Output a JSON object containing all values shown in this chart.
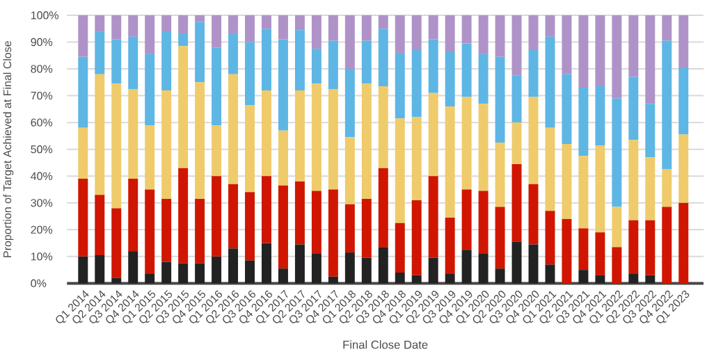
{
  "chart_data": {
    "type": "bar",
    "stacked": true,
    "grid": "y",
    "xlabel": "Final Close Date",
    "ylabel": "Proportion of Target Achieved at Final Close",
    "categories": [
      "Q1 2014",
      "Q2 2014",
      "Q3 2014",
      "Q4 2014",
      "Q1 2015",
      "Q2 2015",
      "Q3 2015",
      "Q4 2015",
      "Q1 2016",
      "Q2 2016",
      "Q3 2016",
      "Q4 2016",
      "Q1 2017",
      "Q2 2017",
      "Q3 2017",
      "Q4 2017",
      "Q1 2018",
      "Q2 2018",
      "Q3 2018",
      "Q4 2018",
      "Q1 2019",
      "Q2 2019",
      "Q3 2019",
      "Q4 2019",
      "Q1 2020",
      "Q2 2020",
      "Q3 2020",
      "Q4 2020",
      "Q1 2021",
      "Q2 2021",
      "Q3 2021",
      "Q4 2021",
      "Q1 2022",
      "Q2 2022",
      "Q3 2022",
      "Q4 2022",
      "Q1 2023"
    ],
    "ylim": [
      0,
      100
    ],
    "yticks": [
      {
        "value": 0,
        "label": "0%"
      },
      {
        "value": 10,
        "label": "10%"
      },
      {
        "value": 20,
        "label": "20%"
      },
      {
        "value": 30,
        "label": "30%"
      },
      {
        "value": 40,
        "label": "40%"
      },
      {
        "value": 50,
        "label": "50%"
      },
      {
        "value": 60,
        "label": "60%"
      },
      {
        "value": 70,
        "label": "70%"
      },
      {
        "value": 80,
        "label": "80%"
      },
      {
        "value": 90,
        "label": "90%"
      },
      {
        "value": 100,
        "label": "100%"
      }
    ],
    "series": [
      {
        "color": "#222222",
        "values": [
          10,
          10.5,
          2,
          12,
          3.5,
          8,
          7.5,
          7.5,
          10,
          13,
          8.5,
          15,
          5.5,
          14.5,
          11,
          2.5,
          11.5,
          9.5,
          13.5,
          4,
          3,
          9.5,
          3.5,
          12.5,
          11,
          5.5,
          15.5,
          14.5,
          7,
          0,
          5,
          3,
          0,
          3.5,
          3,
          0,
          0
        ]
      },
      {
        "color": "#d01600",
        "values": [
          29,
          22.5,
          26,
          27,
          31.5,
          23.5,
          35.5,
          24,
          30,
          24,
          25.5,
          25,
          31,
          23.5,
          23.5,
          32.5,
          18,
          22,
          29.5,
          18.5,
          28,
          30.5,
          21,
          22.5,
          23.5,
          23,
          29,
          22.5,
          20,
          24,
          15.5,
          16,
          13.5,
          20,
          20.5,
          28.5,
          30
        ]
      },
      {
        "color": "#efcb6b",
        "values": [
          19,
          45,
          46.5,
          33.5,
          24,
          40.5,
          45.5,
          43.5,
          19,
          41,
          32.5,
          32,
          20.5,
          34,
          40,
          37.5,
          25,
          43,
          30.5,
          39,
          31,
          31,
          41.5,
          34.5,
          32.5,
          24,
          15.5,
          32.5,
          31,
          28,
          27,
          32.5,
          15,
          30,
          23.5,
          14,
          25.5
        ]
      },
      {
        "color": "#5eb6e4",
        "values": [
          26.5,
          16,
          16.5,
          19.5,
          26.5,
          22,
          4.5,
          22.5,
          29,
          15,
          23.5,
          23,
          34,
          22.5,
          13,
          18,
          25.5,
          16,
          21.5,
          24.5,
          25,
          20,
          20.5,
          20,
          18.5,
          32,
          17.5,
          17.5,
          34,
          26,
          25.5,
          22,
          40.5,
          23.5,
          20,
          48,
          25
        ]
      },
      {
        "color": "#af93c8",
        "values": [
          15.5,
          6,
          9,
          8,
          14.5,
          6,
          7,
          2.5,
          12,
          7,
          10,
          5,
          9,
          5.5,
          12.5,
          9.5,
          20,
          9.5,
          5,
          14,
          13,
          9,
          13.5,
          10.5,
          14.5,
          15.5,
          22.5,
          13,
          8,
          22,
          27,
          26.5,
          31,
          23,
          33,
          9.5,
          19.5
        ]
      }
    ]
  }
}
